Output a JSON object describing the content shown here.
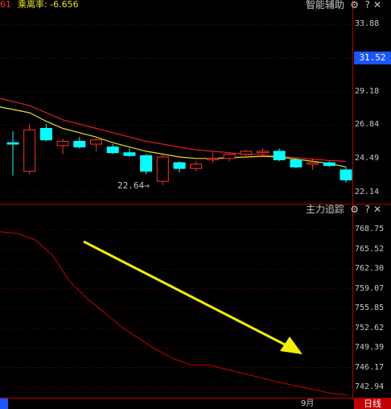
{
  "top": {
    "indicator_left": "61",
    "indicator_label": "乘离率: -6.656",
    "tool_title": "智能辅助",
    "price_ticks": [
      "33.88",
      "29.18",
      "26.84",
      "24.49",
      "22.14"
    ],
    "current_price": "31.52",
    "low_annotation": "22.64",
    "colors": {
      "up": "#ff3030",
      "down": "#00ffff",
      "ma_long": "#e02020",
      "ma_short": "#e8e020"
    }
  },
  "bottom": {
    "tool_title": "主力追踪",
    "ticks": [
      "768.75",
      "765.52",
      "762.30",
      "759.07",
      "755.85",
      "752.62",
      "749.39",
      "746.17",
      "742.94"
    ],
    "colors": {
      "line": "#c80000",
      "arrow": "#f0f000"
    }
  },
  "footer": {
    "month": "9月",
    "period_button": "日线"
  },
  "chart_data": [
    {
      "type": "candlestick",
      "title": "",
      "ylim": [
        21.5,
        34.8
      ],
      "yticks": [
        33.88,
        31.52,
        29.18,
        26.84,
        24.49,
        22.14
      ],
      "candles": [
        {
          "o": 25.6,
          "h": 26.4,
          "l": 23.3,
          "c": 25.5,
          "dir": "down"
        },
        {
          "o": 23.6,
          "h": 26.9,
          "l": 23.4,
          "c": 26.5,
          "dir": "up"
        },
        {
          "o": 26.6,
          "h": 26.9,
          "l": 25.7,
          "c": 25.8,
          "dir": "down"
        },
        {
          "o": 25.7,
          "h": 25.9,
          "l": 24.8,
          "c": 25.4,
          "dir": "up"
        },
        {
          "o": 25.7,
          "h": 26.0,
          "l": 25.2,
          "c": 25.3,
          "dir": "down"
        },
        {
          "o": 25.5,
          "h": 25.9,
          "l": 25.0,
          "c": 25.8,
          "dir": "up"
        },
        {
          "o": 25.3,
          "h": 25.5,
          "l": 24.8,
          "c": 24.9,
          "dir": "down"
        },
        {
          "o": 24.9,
          "h": 25.2,
          "l": 24.6,
          "c": 24.7,
          "dir": "down"
        },
        {
          "o": 24.7,
          "h": 24.8,
          "l": 23.4,
          "c": 23.6,
          "dir": "down"
        },
        {
          "o": 22.9,
          "h": 24.9,
          "l": 22.64,
          "c": 24.6,
          "dir": "up"
        },
        {
          "o": 24.2,
          "h": 24.3,
          "l": 23.5,
          "c": 23.8,
          "dir": "down"
        },
        {
          "o": 23.8,
          "h": 24.3,
          "l": 23.6,
          "c": 24.1,
          "dir": "up"
        },
        {
          "o": 24.4,
          "h": 24.9,
          "l": 24.2,
          "c": 24.5,
          "dir": "up"
        },
        {
          "o": 24.5,
          "h": 24.9,
          "l": 24.3,
          "c": 24.8,
          "dir": "up"
        },
        {
          "o": 24.8,
          "h": 25.1,
          "l": 24.6,
          "c": 25.0,
          "dir": "up"
        },
        {
          "o": 24.9,
          "h": 25.2,
          "l": 24.8,
          "c": 25.0,
          "dir": "up"
        },
        {
          "o": 25.0,
          "h": 25.2,
          "l": 24.3,
          "c": 24.4,
          "dir": "down"
        },
        {
          "o": 24.4,
          "h": 24.5,
          "l": 23.8,
          "c": 23.9,
          "dir": "down"
        },
        {
          "o": 24.2,
          "h": 24.5,
          "l": 23.7,
          "c": 24.1,
          "dir": "up"
        },
        {
          "o": 24.2,
          "h": 24.3,
          "l": 23.9,
          "c": 24.0,
          "dir": "down"
        },
        {
          "o": 23.7,
          "h": 23.9,
          "l": 22.8,
          "c": 23.0,
          "dir": "down"
        }
      ],
      "ma_long": [
        28.7,
        28.2,
        27.7,
        27.2,
        26.9,
        26.6,
        26.3,
        26.0,
        25.7,
        25.5,
        25.3,
        25.1,
        25.0,
        24.9,
        24.8,
        24.75,
        24.65,
        24.55,
        24.45,
        24.35,
        24.3
      ],
      "ma_short": [
        28.1,
        27.7,
        27.1,
        26.6,
        26.3,
        26.0,
        25.6,
        25.3,
        25.0,
        24.8,
        24.6,
        24.5,
        24.5,
        24.55,
        24.6,
        24.65,
        24.6,
        24.45,
        24.3,
        24.15,
        23.9
      ]
    },
    {
      "type": "line",
      "title": "",
      "ylim": [
        741.5,
        771.0
      ],
      "yticks": [
        768.75,
        765.52,
        762.3,
        759.07,
        755.85,
        752.62,
        749.39,
        746.17,
        742.94
      ],
      "x": [
        0,
        1,
        2,
        3,
        4,
        5,
        6,
        7,
        8,
        9,
        10,
        11,
        12,
        13,
        14,
        15,
        16,
        17,
        18,
        19,
        20
      ],
      "values": [
        768.4,
        768.1,
        767.1,
        764.6,
        760.3,
        757.5,
        755.2,
        752.8,
        750.9,
        749.1,
        747.6,
        746.6,
        746.6,
        745.9,
        745.2,
        744.5,
        743.8,
        743.2,
        742.6,
        742.0,
        741.7
      ]
    }
  ]
}
